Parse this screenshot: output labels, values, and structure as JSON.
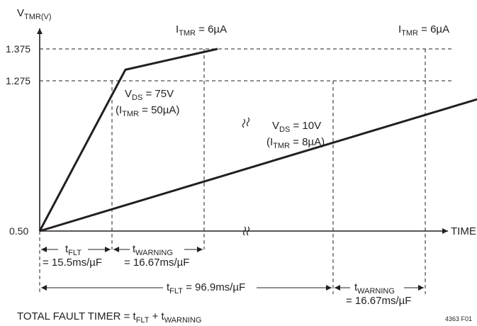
{
  "chart_data": {
    "type": "line",
    "title": "",
    "ylabel": {
      "main": "V",
      "sub": "TMR(V)"
    },
    "xlabel": "TIME",
    "y_ticks": [
      {
        "value": 1.375,
        "label": "1.375"
      },
      {
        "value": 1.275,
        "label": "1.275"
      },
      {
        "value": 0.5,
        "label": "0.50"
      }
    ],
    "ylim": [
      0.5,
      1.375
    ],
    "series": [
      {
        "x": [
          0,
          15.5,
          32.17
        ],
        "y": [
          0.5,
          1.275,
          1.375
        ]
      },
      {
        "x": [
          0,
          96.9,
          113.57
        ],
        "y": [
          0.5,
          1.275,
          1.375
        ]
      }
    ],
    "annotations": {
      "itmr_top_left": {
        "main": "I",
        "sub": "TMR",
        "rest": " = 6µA"
      },
      "itmr_top_right": {
        "main": "I",
        "sub": "TMR",
        "rest": " = 6µA"
      },
      "vds75": {
        "main": "V",
        "sub": "DS",
        "rest": " = 75V"
      },
      "vds75_current": {
        "open": "(I",
        "sub": "TMR",
        "rest": " = 50µA)"
      },
      "vds10": {
        "main": "V",
        "sub": "DS",
        "rest": " = 10V"
      },
      "vds10_current": {
        "open": "(I",
        "sub": "TMR",
        "rest": " = 8µA)"
      }
    },
    "intervals": {
      "tflt_short": {
        "main": "t",
        "sub": "FLT",
        "value": "= 15.5ms/µF"
      },
      "twarning_short": {
        "main": "t",
        "sub": "WARNING",
        "value": "= 16.67ms/µF"
      },
      "tflt_long": {
        "main": "t",
        "sub": "FLT",
        "value": " = 96.9ms/µF"
      },
      "twarning_long": {
        "main": "t",
        "sub": "WARNING",
        "value": "= 16.67ms/µF"
      }
    },
    "footer": {
      "prefix": "TOTAL FAULT TIMER = t",
      "sub1": "FLT",
      "middle": " + t",
      "sub2": "WARNING"
    },
    "figure_id": "4363 F01"
  }
}
